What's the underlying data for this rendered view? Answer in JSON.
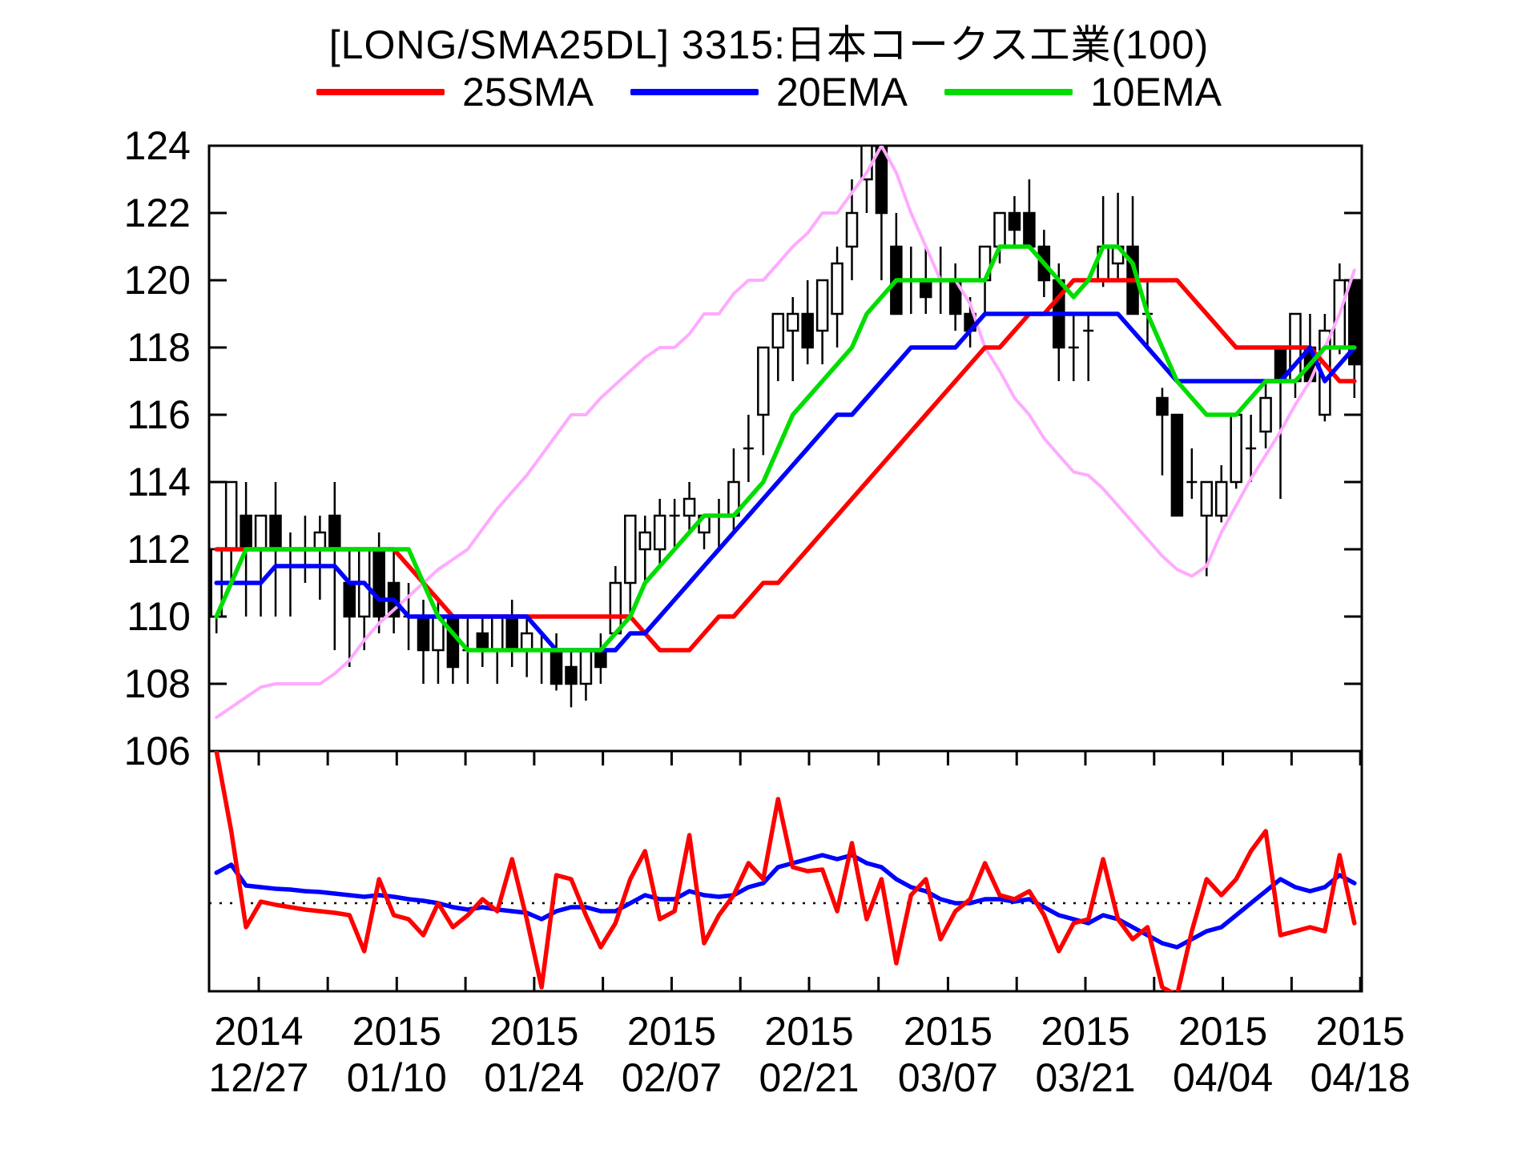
{
  "title": "[LONG/SMA25DL] 3315:日本コークス工業(100)",
  "legend": [
    {
      "label": "25SMA",
      "color": "#ff0000"
    },
    {
      "label": "20EMA",
      "color": "#0000ff"
    },
    {
      "label": "10EMA",
      "color": "#00dd00"
    }
  ],
  "chart_data": {
    "type": "candlestick",
    "title": "[LONG/SMA25DL] 3315:日本コークス工業(100)",
    "y_axis": {
      "min": 106,
      "max": 124,
      "tick_step": 2,
      "tick_labels": [
        "106",
        "108",
        "110",
        "112",
        "114",
        "116",
        "118",
        "120",
        "122",
        "124"
      ]
    },
    "x_axis": {
      "ticks": [
        {
          "year": "2014",
          "date": "12/27",
          "bar_pos": 2.86
        },
        {
          "year": "2015",
          "date": "01/10",
          "bar_pos": 12.2
        },
        {
          "year": "2015",
          "date": "01/24",
          "bar_pos": 21.5
        },
        {
          "year": "2015",
          "date": "02/07",
          "bar_pos": 30.8
        },
        {
          "year": "2015",
          "date": "02/21",
          "bar_pos": 40.1
        },
        {
          "year": "2015",
          "date": "03/07",
          "bar_pos": 49.5
        },
        {
          "year": "2015",
          "date": "03/21",
          "bar_pos": 58.8
        },
        {
          "year": "2015",
          "date": "04/04",
          "bar_pos": 68.1
        },
        {
          "year": "2015",
          "date": "04/18",
          "bar_pos": 77.4
        }
      ]
    },
    "candles": [
      [
        110,
        112,
        109.5,
        112
      ],
      [
        112,
        114,
        111,
        114
      ],
      [
        113,
        114,
        110,
        112
      ],
      [
        112,
        113,
        110,
        113
      ],
      [
        113,
        114,
        110,
        112
      ],
      [
        112,
        112.5,
        110,
        112
      ],
      [
        112,
        113,
        111,
        112
      ],
      [
        112,
        113,
        110.5,
        112.5
      ],
      [
        113,
        114,
        109,
        112
      ],
      [
        111,
        112,
        108.5,
        110
      ],
      [
        110,
        112,
        109,
        112
      ],
      [
        112,
        112.5,
        109.5,
        110
      ],
      [
        111,
        112,
        109.5,
        110
      ],
      [
        110,
        111,
        109,
        110
      ],
      [
        110,
        110.5,
        108,
        109
      ],
      [
        109,
        110.5,
        108,
        110
      ],
      [
        110,
        110,
        108,
        108.5
      ],
      [
        109,
        110,
        108,
        109
      ],
      [
        109.5,
        110,
        108.5,
        109
      ],
      [
        109,
        110,
        108,
        110
      ],
      [
        110,
        110.5,
        108.5,
        109
      ],
      [
        109,
        110,
        108.2,
        109.5
      ],
      [
        109,
        109.5,
        108,
        109
      ],
      [
        109,
        109.5,
        107.8,
        108
      ],
      [
        108.5,
        109,
        107.3,
        108
      ],
      [
        108,
        109,
        107.5,
        109
      ],
      [
        109,
        109.5,
        108,
        108.5
      ],
      [
        109.5,
        111.5,
        109.5,
        111
      ],
      [
        111,
        113,
        110,
        113
      ],
      [
        112,
        113,
        111,
        112.5
      ],
      [
        112,
        113.5,
        111.5,
        113
      ],
      [
        113,
        113.5,
        112,
        113
      ],
      [
        113,
        114,
        112.5,
        113.5
      ],
      [
        112.5,
        113,
        112,
        113
      ],
      [
        113,
        113.5,
        112,
        113
      ],
      [
        113,
        115,
        112.5,
        114
      ],
      [
        115,
        116,
        114,
        115
      ],
      [
        116,
        118,
        114.8,
        118
      ],
      [
        118,
        119,
        117,
        119
      ],
      [
        118.5,
        119.5,
        117,
        119
      ],
      [
        119,
        120,
        117.5,
        118
      ],
      [
        118.5,
        120,
        117.5,
        120
      ],
      [
        119,
        121,
        118,
        120.5
      ],
      [
        121,
        123,
        120,
        122
      ],
      [
        123,
        124,
        122,
        124
      ],
      [
        124,
        124,
        120,
        122
      ],
      [
        121,
        122,
        119,
        119
      ],
      [
        120,
        121,
        119,
        120
      ],
      [
        120,
        121,
        119,
        119.5
      ],
      [
        120,
        121,
        119,
        120
      ],
      [
        120,
        120.5,
        118.5,
        119
      ],
      [
        119,
        119.5,
        118,
        118.5
      ],
      [
        120,
        121,
        119,
        121
      ],
      [
        121,
        122,
        120.5,
        122
      ],
      [
        122,
        122.5,
        121,
        121.5
      ],
      [
        122,
        123,
        121,
        121
      ],
      [
        121,
        121.5,
        119.5,
        120
      ],
      [
        120,
        120.5,
        117,
        118
      ],
      [
        118,
        119,
        117,
        118
      ],
      [
        118.5,
        119,
        117,
        118.5
      ],
      [
        120,
        122.5,
        119.8,
        121
      ],
      [
        120.5,
        122.6,
        120,
        121
      ],
      [
        121,
        122.5,
        119,
        119
      ],
      [
        119,
        120,
        118,
        119
      ],
      [
        116.5,
        116.8,
        114.2,
        116
      ],
      [
        116,
        116,
        113,
        113
      ],
      [
        114,
        115,
        113.5,
        114
      ],
      [
        113,
        114,
        111.2,
        114
      ],
      [
        113,
        114.5,
        112.8,
        114
      ],
      [
        114,
        116,
        113.8,
        116
      ],
      [
        115,
        116,
        114,
        115
      ],
      [
        115.5,
        117,
        115,
        116.5
      ],
      [
        118,
        118,
        113.5,
        117
      ],
      [
        117,
        119,
        116.5,
        119
      ],
      [
        118,
        119,
        117,
        117
      ],
      [
        116,
        119,
        115.8,
        118.5
      ],
      [
        118,
        120.5,
        117.8,
        120
      ],
      [
        120,
        120,
        116.5,
        117.5
      ]
    ],
    "series": {
      "dl_line": {
        "name": "SMA25DL envelope",
        "color": "#ffaaff",
        "values": [
          107,
          107.3,
          107.6,
          107.9,
          108,
          108,
          108,
          108,
          108.3,
          108.7,
          109.3,
          109.8,
          110.2,
          110.6,
          111,
          111.4,
          111.7,
          112,
          112.6,
          113.2,
          113.7,
          114.2,
          114.8,
          115.4,
          116,
          116,
          116.5,
          116.9,
          117.3,
          117.7,
          118,
          118,
          118.4,
          119,
          119,
          119.6,
          120,
          120,
          120.5,
          121,
          121.4,
          122,
          122,
          122.6,
          123.2,
          124,
          123.2,
          122,
          121,
          120,
          120,
          119.3,
          118,
          117.3,
          116.5,
          116,
          115.3,
          114.8,
          114.3,
          114.2,
          113.8,
          113.3,
          112.8,
          112.3,
          111.8,
          111.4,
          111.2,
          111.5,
          112.5,
          113.3,
          114.1,
          114.8,
          115.5,
          116.3,
          117,
          118,
          119,
          120.3
        ]
      },
      "sma25": {
        "name": "25SMA",
        "color": "#ff0000",
        "values": [
          112,
          112,
          112,
          112,
          112,
          112,
          112,
          112,
          112,
          112,
          112,
          112,
          112,
          111.5,
          111,
          110.5,
          110,
          110,
          110,
          110,
          110,
          110,
          110,
          110,
          110,
          110,
          110,
          110,
          110,
          109.5,
          109,
          109,
          109,
          109.5,
          110,
          110,
          110.5,
          111,
          111,
          111.5,
          112,
          112.5,
          113,
          113.5,
          114,
          114.5,
          115,
          115.5,
          116,
          116.5,
          117,
          117.5,
          118,
          118,
          118.5,
          119,
          119,
          119.5,
          120,
          120,
          120,
          120,
          120,
          120,
          120,
          120,
          119.5,
          119,
          118.5,
          118,
          118,
          118,
          118,
          118,
          118,
          117.5,
          117,
          117
        ]
      },
      "ema20": {
        "name": "20EMA",
        "color": "#0000ff",
        "values": [
          111,
          111,
          111,
          111,
          111.5,
          111.5,
          111.5,
          111.5,
          111.5,
          111,
          111,
          110.5,
          110.5,
          110,
          110,
          110,
          110,
          110,
          110,
          110,
          110,
          110,
          109.5,
          109,
          109,
          109,
          109,
          109,
          109.5,
          109.5,
          110,
          110.5,
          111,
          111.5,
          112,
          112.5,
          113,
          113.5,
          114,
          114.5,
          115,
          115.5,
          116,
          116,
          116.5,
          117,
          117.5,
          118,
          118,
          118,
          118,
          118.5,
          119,
          119,
          119,
          119,
          119,
          119,
          119,
          119,
          119,
          119,
          118.5,
          118,
          117.5,
          117,
          117,
          117,
          117,
          117,
          117,
          117,
          117,
          117.5,
          118,
          117,
          117.5,
          118
        ]
      },
      "ema10": {
        "name": "10EMA",
        "color": "#00dd00",
        "values": [
          110,
          111,
          112,
          112,
          112,
          112,
          112,
          112,
          112,
          112,
          112,
          112,
          112,
          112,
          111,
          110,
          109.5,
          109,
          109,
          109,
          109,
          109,
          109,
          109,
          109,
          109,
          109,
          109.5,
          110,
          111,
          111.5,
          112,
          112.5,
          113,
          113,
          113,
          113.5,
          114,
          115,
          116,
          116.5,
          117,
          117.5,
          118,
          119,
          119.5,
          120,
          120,
          120,
          120,
          120,
          120,
          120,
          121,
          121,
          121,
          120.5,
          120,
          119.5,
          120,
          121,
          121,
          120.5,
          119,
          118,
          117,
          116.5,
          116,
          116,
          116,
          116.5,
          117,
          117,
          117,
          117.5,
          118,
          118,
          118
        ]
      }
    },
    "lower_panel": {
      "zero_line": "dotted",
      "red": [
        1.9,
        0.9,
        -0.3,
        0.02,
        -0.02,
        -0.05,
        -0.08,
        -0.1,
        -0.12,
        -0.15,
        -0.6,
        0.3,
        -0.15,
        -0.2,
        -0.4,
        0,
        -0.3,
        -0.15,
        0.05,
        -0.1,
        0.55,
        -0.2,
        -1.05,
        0.35,
        0.3,
        -0.15,
        -0.55,
        -0.25,
        0.3,
        0.65,
        -0.2,
        -0.1,
        0.85,
        -0.5,
        -0.15,
        0.1,
        0.5,
        0.3,
        1.3,
        0.45,
        0.4,
        0.42,
        -0.1,
        0.75,
        -0.2,
        0.3,
        -0.75,
        0.1,
        0.3,
        -0.45,
        -0.1,
        0.05,
        0.5,
        0.1,
        0.05,
        0.15,
        -0.15,
        -0.6,
        -0.25,
        -0.2,
        0.55,
        -0.2,
        -0.45,
        -0.3,
        -1.05,
        -1.15,
        -0.35,
        0.3,
        0.1,
        0.3,
        0.65,
        0.9,
        -0.4,
        -0.35,
        -0.3,
        -0.35,
        0.6,
        -0.25
      ],
      "blue": [
        0.38,
        0.48,
        0.22,
        0.2,
        0.18,
        0.17,
        0.15,
        0.14,
        0.12,
        0.1,
        0.08,
        0.1,
        0.08,
        0.05,
        0.03,
        0,
        -0.05,
        -0.08,
        -0.05,
        -0.08,
        -0.1,
        -0.12,
        -0.2,
        -0.1,
        -0.05,
        -0.05,
        -0.1,
        -0.1,
        0,
        0.1,
        0.05,
        0.05,
        0.15,
        0.1,
        0.08,
        0.1,
        0.2,
        0.25,
        0.45,
        0.5,
        0.55,
        0.6,
        0.55,
        0.6,
        0.5,
        0.45,
        0.3,
        0.2,
        0.15,
        0.05,
        0,
        0,
        0.05,
        0.05,
        0.02,
        0.05,
        -0.05,
        -0.15,
        -0.2,
        -0.25,
        -0.15,
        -0.2,
        -0.3,
        -0.4,
        -0.5,
        -0.55,
        -0.45,
        -0.35,
        -0.3,
        -0.15,
        0,
        0.15,
        0.3,
        0.2,
        0.15,
        0.2,
        0.35,
        0.25
      ]
    },
    "colors": {
      "up_candle_fill": "#ffffff",
      "down_candle_fill": "#000000",
      "candle_stroke": "#000000",
      "osc_red": "#ff0000",
      "osc_blue": "#0000ff",
      "axis": "#000000"
    }
  }
}
